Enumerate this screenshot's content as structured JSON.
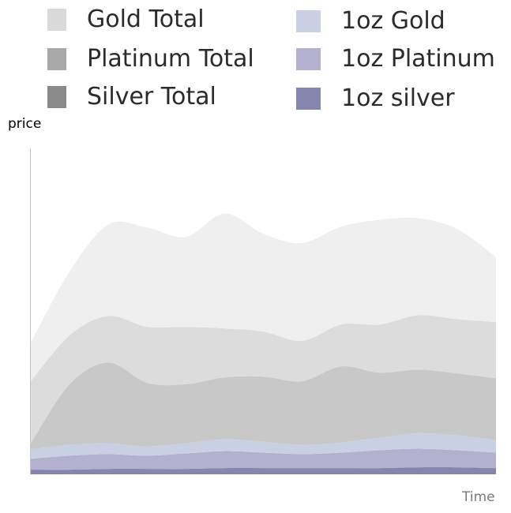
{
  "chart_data": {
    "type": "area",
    "stacked": true,
    "title": "",
    "xlabel": "Time",
    "ylabel": "price",
    "x": [
      0,
      1,
      2,
      3,
      4,
      5,
      6,
      7,
      8,
      9,
      10,
      11,
      12
    ],
    "series": [
      {
        "name": "1oz silver",
        "color": "#8585ad",
        "values": [
          6,
          6,
          7,
          7,
          7,
          8,
          8,
          8,
          8,
          8,
          9,
          9,
          8
        ]
      },
      {
        "name": "1oz Platinum",
        "color": "#b3b0d0",
        "values": [
          14,
          18,
          19,
          17,
          20,
          22,
          20,
          18,
          20,
          23,
          24,
          22,
          20
        ]
      },
      {
        "name": "1oz Gold",
        "color": "#c9d0e3",
        "values": [
          12,
          14,
          14,
          12,
          13,
          15,
          14,
          12,
          13,
          16,
          20,
          19,
          16
        ]
      },
      {
        "name": "Silver Total",
        "color": "#c8c8c8",
        "values": [
          8,
          78,
          104,
          82,
          76,
          80,
          84,
          82,
          98,
          84,
          82,
          80,
          80
        ]
      },
      {
        "name": "Platinum Total",
        "color": "#dcdcdc",
        "values": [
          80,
          63,
          60,
          72,
          74,
          63,
          58,
          52,
          54,
          62,
          70,
          70,
          72
        ]
      },
      {
        "name": "Gold Total",
        "color": "#efefef",
        "values": [
          50,
          82,
          118,
          128,
          116,
          148,
          126,
          126,
          126,
          135,
          125,
          116,
          84
        ]
      }
    ],
    "legend": {
      "placement": "top",
      "order": [
        "Gold Total",
        "Platinum Total",
        "Silver Total",
        "1oz Gold",
        "1oz Platinum",
        "1oz silver"
      ]
    },
    "legend_swatch_colors": {
      "Gold Total": "#dadada",
      "Platinum Total": "#a9a9a9",
      "Silver Total": "#8a8a8a",
      "1oz Gold": "#c9d0e3",
      "1oz Platinum": "#b3b0d0",
      "1oz silver": "#8585ad"
    },
    "ylim": [
      0,
      420
    ],
    "grid": false
  }
}
